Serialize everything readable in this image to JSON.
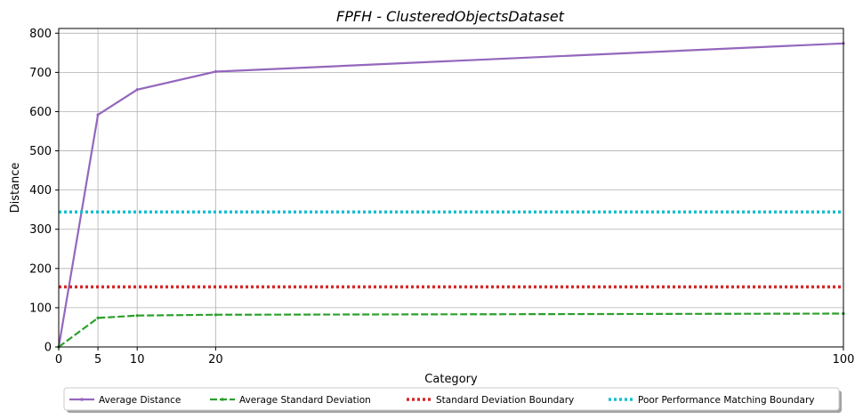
{
  "chart_data": {
    "type": "line",
    "title": "FPFH - ClusteredObjectsDataset",
    "xlabel": "Category",
    "ylabel": "Distance",
    "xlim": [
      0,
      100
    ],
    "ylim": [
      0,
      812
    ],
    "xticks": [
      0,
      5,
      10,
      20,
      100
    ],
    "yticks": [
      0,
      100,
      200,
      300,
      400,
      500,
      600,
      700,
      800
    ],
    "grid": true,
    "legend_position": "bottom-center",
    "series": [
      {
        "name": "Average Distance",
        "style": "solid",
        "color": "#9467bd",
        "points": [
          [
            0,
            0
          ],
          [
            5,
            592
          ],
          [
            10,
            656
          ],
          [
            20,
            702
          ],
          [
            100,
            774
          ]
        ]
      },
      {
        "name": "Average Standard Deviation",
        "style": "dashed",
        "color": "#2ca02c",
        "points": [
          [
            0,
            0
          ],
          [
            5,
            74
          ],
          [
            10,
            80
          ],
          [
            20,
            82
          ],
          [
            100,
            85
          ]
        ]
      },
      {
        "name": "Standard Deviation Boundary",
        "style": "dotted",
        "color": "#d62728",
        "points": [
          [
            0,
            153
          ],
          [
            100,
            153
          ]
        ]
      },
      {
        "name": "Poor Performance Matching Boundary",
        "style": "dotted",
        "color": "#17becf",
        "points": [
          [
            0,
            344
          ],
          [
            100,
            344
          ]
        ]
      }
    ]
  }
}
